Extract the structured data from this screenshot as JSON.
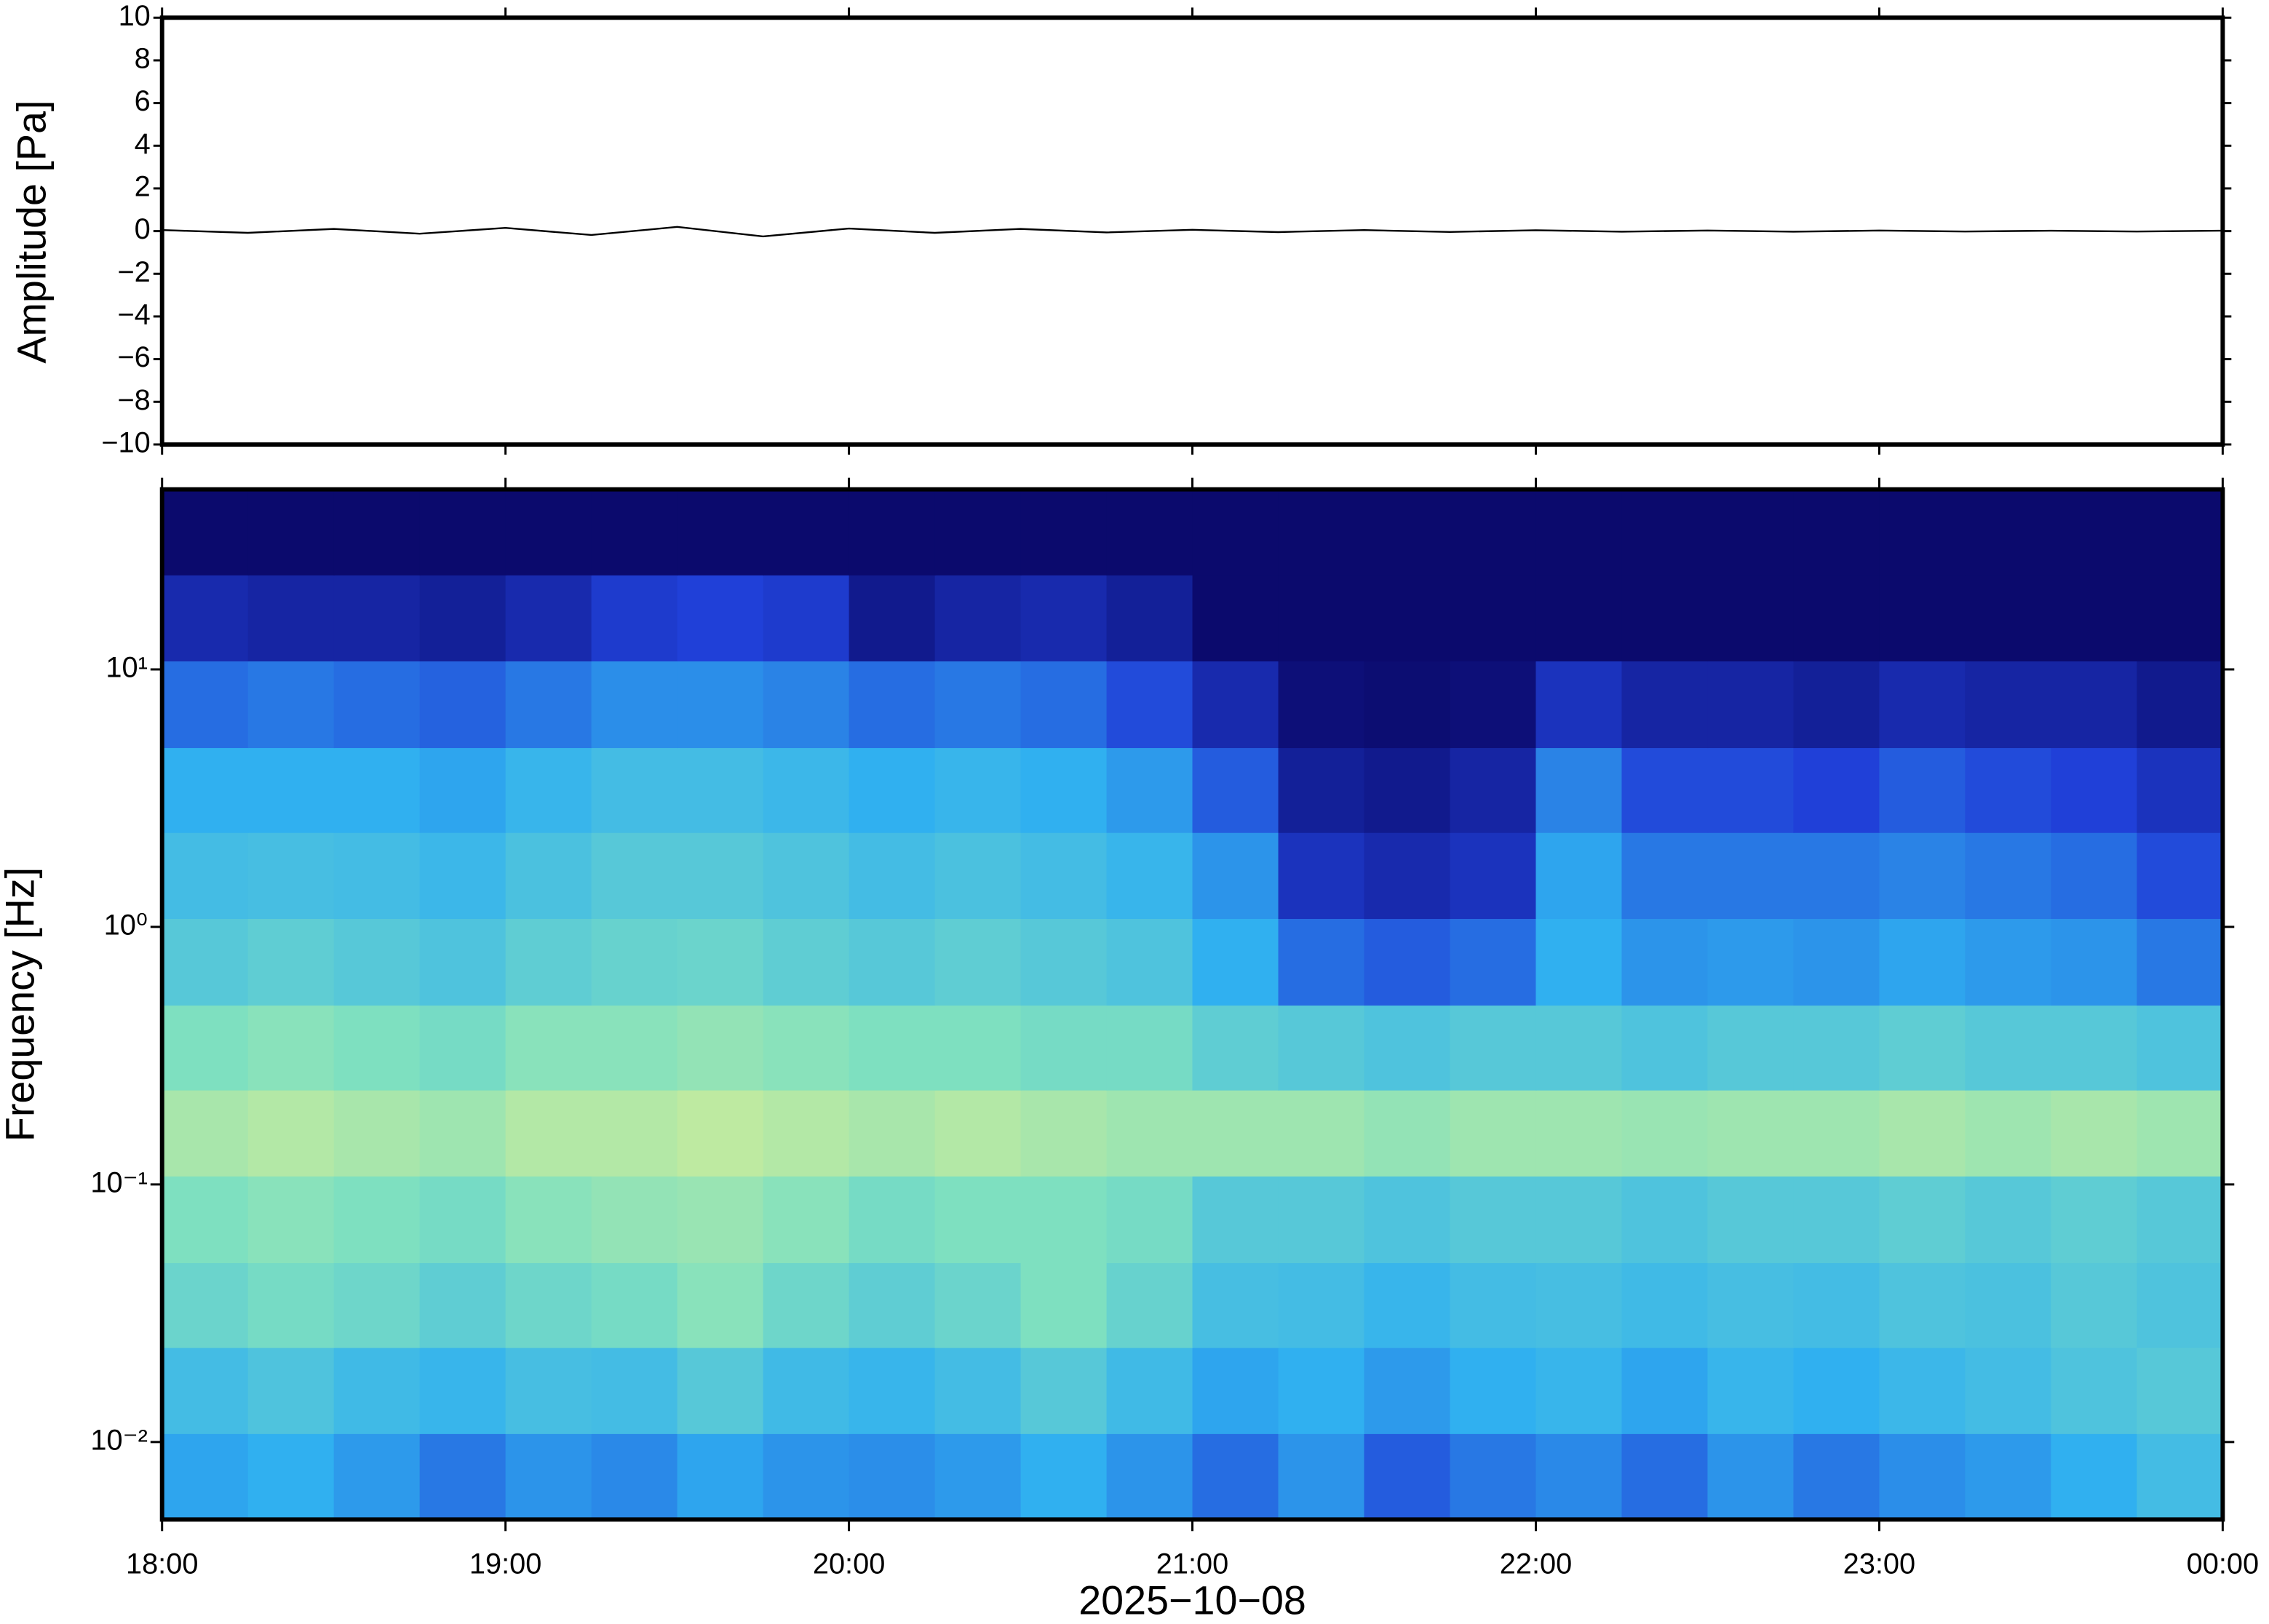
{
  "chart_data": [
    {
      "type": "line",
      "ylabel": "Amplitude [Pa]",
      "color": "#000000",
      "x": [
        18,
        18.25,
        18.5,
        18.75,
        19,
        19.25,
        19.5,
        19.75,
        20,
        20.25,
        20.5,
        20.75,
        21,
        21.25,
        21.5,
        21.75,
        22,
        22.25,
        22.5,
        22.75,
        23,
        23.25,
        23.5,
        23.75,
        24
      ],
      "values": [
        0.05,
        -0.08,
        0.1,
        -0.12,
        0.15,
        -0.18,
        0.2,
        -0.25,
        0.12,
        -0.08,
        0.1,
        -0.06,
        0.06,
        -0.05,
        0.05,
        -0.04,
        0.04,
        -0.03,
        0.03,
        -0.03,
        0.03,
        -0.02,
        0.02,
        -0.02,
        0.02
      ],
      "xlim": [
        18,
        24
      ],
      "ylim": [
        -10,
        10
      ],
      "yticks": [
        {
          "value": -10,
          "label": "−10"
        },
        {
          "value": -8,
          "label": "−8"
        },
        {
          "value": -6,
          "label": "−6"
        },
        {
          "value": -4,
          "label": "−4"
        },
        {
          "value": -2,
          "label": "−2"
        },
        0,
        2,
        4,
        6,
        8,
        10
      ]
    },
    {
      "type": "heatmap",
      "ylabel": "Frequency [Hz]",
      "xlabel": "2025−10−08",
      "yscale": "log",
      "x": [
        18.125,
        18.375,
        18.625,
        18.875,
        19.125,
        19.375,
        19.625,
        19.875,
        20.125,
        20.375,
        20.625,
        20.875,
        21.125,
        21.375,
        21.625,
        21.875,
        22.125,
        22.375,
        22.625,
        22.875,
        23.125,
        23.375,
        23.625,
        23.875
      ],
      "y": [
        0.0073,
        0.016,
        0.034,
        0.073,
        0.16,
        0.34,
        0.73,
        1.6,
        3.4,
        7.3,
        16,
        34
      ],
      "values": [
        [
          0.38,
          0.4,
          0.36,
          0.3,
          0.35,
          0.33,
          0.38,
          0.35,
          0.34,
          0.36,
          0.4,
          0.35,
          0.28,
          0.35,
          0.25,
          0.3,
          0.33,
          0.28,
          0.35,
          0.3,
          0.34,
          0.36,
          0.4,
          0.45
        ],
        [
          0.45,
          0.48,
          0.44,
          0.42,
          0.46,
          0.45,
          0.5,
          0.44,
          0.42,
          0.45,
          0.5,
          0.44,
          0.38,
          0.4,
          0.36,
          0.4,
          0.42,
          0.38,
          0.42,
          0.4,
          0.43,
          0.45,
          0.48,
          0.5
        ],
        [
          0.55,
          0.58,
          0.56,
          0.52,
          0.56,
          0.58,
          0.62,
          0.56,
          0.52,
          0.55,
          0.6,
          0.54,
          0.46,
          0.45,
          0.42,
          0.45,
          0.46,
          0.44,
          0.46,
          0.45,
          0.48,
          0.47,
          0.5,
          0.48
        ],
        [
          0.6,
          0.62,
          0.6,
          0.58,
          0.62,
          0.64,
          0.65,
          0.62,
          0.58,
          0.6,
          0.6,
          0.58,
          0.5,
          0.5,
          0.48,
          0.5,
          0.5,
          0.48,
          0.5,
          0.5,
          0.52,
          0.5,
          0.52,
          0.5
        ],
        [
          0.68,
          0.7,
          0.68,
          0.66,
          0.7,
          0.7,
          0.72,
          0.7,
          0.68,
          0.7,
          0.68,
          0.66,
          0.66,
          0.66,
          0.64,
          0.66,
          0.66,
          0.65,
          0.66,
          0.66,
          0.68,
          0.66,
          0.68,
          0.66
        ],
        [
          0.6,
          0.62,
          0.6,
          0.58,
          0.62,
          0.62,
          0.64,
          0.62,
          0.6,
          0.6,
          0.58,
          0.58,
          0.52,
          0.5,
          0.48,
          0.5,
          0.5,
          0.48,
          0.5,
          0.5,
          0.52,
          0.5,
          0.5,
          0.48
        ],
        [
          0.5,
          0.52,
          0.5,
          0.48,
          0.52,
          0.54,
          0.55,
          0.52,
          0.5,
          0.52,
          0.5,
          0.48,
          0.4,
          0.28,
          0.25,
          0.28,
          0.4,
          0.35,
          0.36,
          0.35,
          0.38,
          0.36,
          0.35,
          0.3
        ],
        [
          0.45,
          0.46,
          0.45,
          0.43,
          0.47,
          0.5,
          0.5,
          0.48,
          0.45,
          0.47,
          0.45,
          0.42,
          0.35,
          0.15,
          0.12,
          0.15,
          0.38,
          0.3,
          0.3,
          0.3,
          0.32,
          0.3,
          0.28,
          0.22
        ],
        [
          0.4,
          0.4,
          0.4,
          0.38,
          0.42,
          0.45,
          0.45,
          0.43,
          0.4,
          0.42,
          0.4,
          0.36,
          0.25,
          0.08,
          0.06,
          0.1,
          0.32,
          0.22,
          0.22,
          0.2,
          0.25,
          0.22,
          0.2,
          0.15
        ],
        [
          0.28,
          0.3,
          0.28,
          0.26,
          0.3,
          0.34,
          0.34,
          0.32,
          0.28,
          0.3,
          0.28,
          0.22,
          0.12,
          0.02,
          0.01,
          0.02,
          0.15,
          0.1,
          0.1,
          0.08,
          0.12,
          0.1,
          0.1,
          0.06
        ],
        [
          0.12,
          0.1,
          0.1,
          0.08,
          0.12,
          0.18,
          0.2,
          0.18,
          0.06,
          0.1,
          0.12,
          0.08,
          0,
          0,
          0,
          0,
          0,
          0,
          0,
          0,
          0,
          0,
          0,
          0
        ],
        [
          0,
          0,
          0,
          0,
          0,
          0,
          0,
          0,
          0,
          0,
          0,
          0,
          0,
          0,
          0,
          0,
          0,
          0,
          0,
          0,
          0,
          0,
          0,
          0
        ]
      ],
      "colormap": [
        "#0b0a6d",
        "#2040d8",
        "#30b0f0",
        "#7ee0c0",
        "#e8f08c",
        "#f8c060"
      ],
      "xlim": [
        18,
        24
      ],
      "xticks": [
        {
          "value": 18,
          "label": "18:00"
        },
        {
          "value": 19,
          "label": "19:00"
        },
        {
          "value": 20,
          "label": "20:00"
        },
        {
          "value": 21,
          "label": "21:00"
        },
        {
          "value": 22,
          "label": "22:00"
        },
        {
          "value": 23,
          "label": "23:00"
        },
        {
          "value": 24,
          "label": "00:00"
        }
      ],
      "ylim": [
        0.005,
        50
      ],
      "yticks": [
        {
          "value": 10,
          "label": "10¹"
        },
        {
          "value": 1,
          "label": "10⁰"
        },
        {
          "value": 0.1,
          "label": "10⁻¹"
        },
        {
          "value": 0.01,
          "label": "10⁻²"
        }
      ]
    }
  ]
}
